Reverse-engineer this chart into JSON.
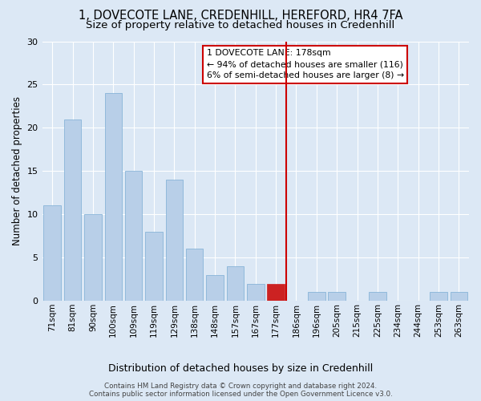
{
  "title": "1, DOVECOTE LANE, CREDENHILL, HEREFORD, HR4 7FA",
  "subtitle": "Size of property relative to detached houses in Credenhill",
  "xlabel": "Distribution of detached houses by size in Credenhill",
  "ylabel": "Number of detached properties",
  "categories": [
    "71sqm",
    "81sqm",
    "90sqm",
    "100sqm",
    "109sqm",
    "119sqm",
    "129sqm",
    "138sqm",
    "148sqm",
    "157sqm",
    "167sqm",
    "177sqm",
    "186sqm",
    "196sqm",
    "205sqm",
    "215sqm",
    "225sqm",
    "234sqm",
    "244sqm",
    "253sqm",
    "263sqm"
  ],
  "values": [
    11,
    21,
    10,
    24,
    15,
    8,
    14,
    6,
    3,
    4,
    2,
    2,
    0,
    1,
    1,
    0,
    1,
    0,
    0,
    1,
    1
  ],
  "bar_color": "#b8cfe8",
  "bar_edge_color": "#7aacd4",
  "highlight_bar_index": 11,
  "highlight_color": "#cc2222",
  "highlight_edge_color": "#cc2222",
  "vline_color": "#cc0000",
  "annotation_box_text": "1 DOVECOTE LANE: 178sqm\n← 94% of detached houses are smaller (116)\n6% of semi-detached houses are larger (8) →",
  "annotation_box_color": "#cc0000",
  "annotation_box_bg": "#ffffff",
  "ylim": [
    0,
    30
  ],
  "yticks": [
    0,
    5,
    10,
    15,
    20,
    25,
    30
  ],
  "background_color": "#dce8f5",
  "grid_color": "#ffffff",
  "footer_text": "Contains HM Land Registry data © Crown copyright and database right 2024.\nContains public sector information licensed under the Open Government Licence v3.0.",
  "title_fontsize": 10.5,
  "subtitle_fontsize": 9.5,
  "tick_fontsize": 7.5,
  "ylabel_fontsize": 8.5,
  "xlabel_fontsize": 9,
  "annotation_fontsize": 7.8,
  "footer_fontsize": 6.3
}
